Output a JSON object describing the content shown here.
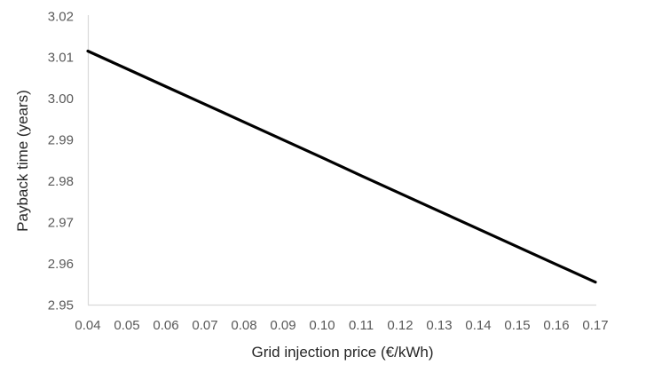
{
  "chart_data": {
    "type": "line",
    "title": "",
    "xlabel": "Grid injection price (€/kWh)",
    "ylabel": "Payback time (years)",
    "x": [
      0.04,
      0.05,
      0.06,
      0.07,
      0.08,
      0.09,
      0.1,
      0.11,
      0.12,
      0.13,
      0.14,
      0.15,
      0.16,
      0.17
    ],
    "values": [
      3.0115,
      3.0072,
      3.0029,
      2.9986,
      2.9943,
      2.99,
      2.9857,
      2.9813,
      2.977,
      2.9727,
      2.9684,
      2.9641,
      2.9598,
      2.9555
    ],
    "x_ticks": [
      "0.04",
      "0.05",
      "0.06",
      "0.07",
      "0.08",
      "0.09",
      "0.10",
      "0.11",
      "0.12",
      "0.13",
      "0.14",
      "0.15",
      "0.16",
      "0.17"
    ],
    "y_ticks": [
      "3.02",
      "3.01",
      "3.00",
      "2.99",
      "2.98",
      "2.97",
      "2.96",
      "2.95"
    ],
    "xlim": [
      0.04,
      0.17
    ],
    "ylim": [
      2.95,
      3.02
    ],
    "grid": false,
    "legend": false,
    "markers": false,
    "line_color": "#000000",
    "axis_line_color": "#d9d9d9",
    "tick_label_color": "#595959",
    "axis_title_color": "#262626",
    "background_color": "#ffffff"
  }
}
